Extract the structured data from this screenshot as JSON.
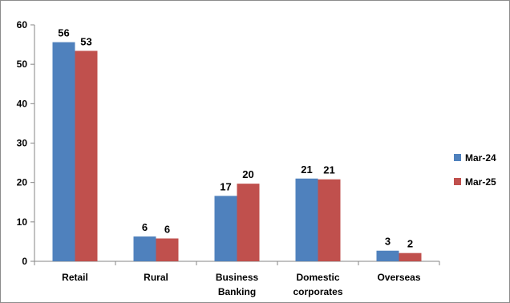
{
  "chart_data": {
    "type": "bar",
    "title": "",
    "xlabel": "",
    "ylabel": "",
    "categories": [
      [
        "Retail"
      ],
      [
        "Rural"
      ],
      [
        "Business",
        "Banking"
      ],
      [
        "Domestic",
        "corporates"
      ],
      [
        "Overseas"
      ]
    ],
    "series": [
      {
        "name": "Mar-24",
        "color": "#4f81bd",
        "values": [
          55.6,
          6.3,
          16.6,
          21.0,
          2.7
        ],
        "labels": [
          "56",
          "6",
          "17",
          "21",
          "3"
        ]
      },
      {
        "name": "Mar-25",
        "color": "#c0504d",
        "values": [
          53.4,
          5.8,
          19.7,
          20.8,
          2.1
        ],
        "labels": [
          "53",
          "6",
          "20",
          "21",
          "2"
        ]
      }
    ],
    "ylim": [
      0,
      60
    ],
    "yticks": [
      0,
      10,
      20,
      30,
      40,
      50,
      60
    ],
    "ytick_labels": [
      "0",
      "10",
      "20",
      "30",
      "40",
      "50",
      "60"
    ],
    "grid": false,
    "legend_position": "right"
  }
}
